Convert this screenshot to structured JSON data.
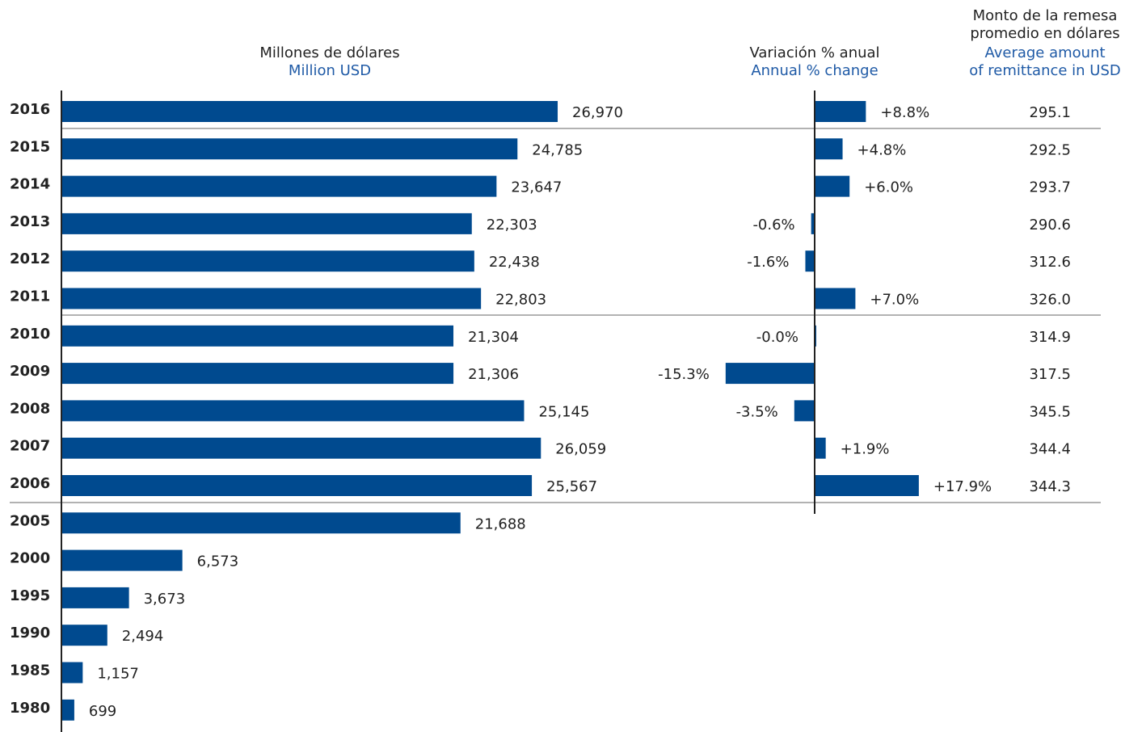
{
  "chart_data": [
    {
      "type": "bar",
      "orientation": "horizontal",
      "title": "Millones de dólares",
      "subtitle": "Million USD",
      "color": "#004a8f",
      "categories": [
        "2016",
        "2015",
        "2014",
        "2013",
        "2012",
        "2011",
        "2010",
        "2009",
        "2008",
        "2007",
        "2006",
        "2005",
        "2000",
        "1995",
        "1990",
        "1985",
        "1980"
      ],
      "values": [
        26970,
        24785,
        23647,
        22303,
        22438,
        22803,
        21304,
        21306,
        25145,
        26059,
        25567,
        21688,
        6573,
        3673,
        2494,
        1157,
        699
      ],
      "value_labels": [
        "26,970",
        "24,785",
        "23,647",
        "22,303",
        "22,438",
        "22,803",
        "21,304",
        "21,306",
        "25,145",
        "26,059",
        "25,567",
        "21,688",
        "6,573",
        "3,673",
        "2,494",
        "1,157",
        "699"
      ],
      "xlim": [
        0,
        30000
      ]
    },
    {
      "type": "bar",
      "orientation": "horizontal",
      "title": "Variación % anual",
      "subtitle": "Annual % change",
      "color": "#004a8f",
      "values": [
        8.8,
        4.8,
        6.0,
        -0.6,
        -1.6,
        7.0,
        -0.0,
        -15.3,
        -3.5,
        1.9,
        17.9
      ],
      "value_labels": [
        "+8.8%",
        "+4.8%",
        "+6.0%",
        "-0.6%",
        "-1.6%",
        "+7.0%",
        "-0.0%",
        "-15.3%",
        "-3.5%",
        "+1.9%",
        "+17.9%"
      ],
      "xlim": [
        -20,
        20
      ]
    },
    {
      "type": "table",
      "title": [
        "Monto de la remesa",
        "promedio en dólares"
      ],
      "subtitle": [
        "Average amount",
        "of remittance in USD"
      ],
      "values": [
        295.1,
        292.5,
        293.7,
        290.6,
        312.6,
        326.0,
        314.9,
        317.5,
        345.5,
        344.4,
        344.3
      ],
      "value_labels": [
        "295.1",
        "292.5",
        "293.7",
        "290.6",
        "312.6",
        "326.0",
        "314.9",
        "317.5",
        "345.5",
        "344.4",
        "344.3"
      ]
    }
  ]
}
